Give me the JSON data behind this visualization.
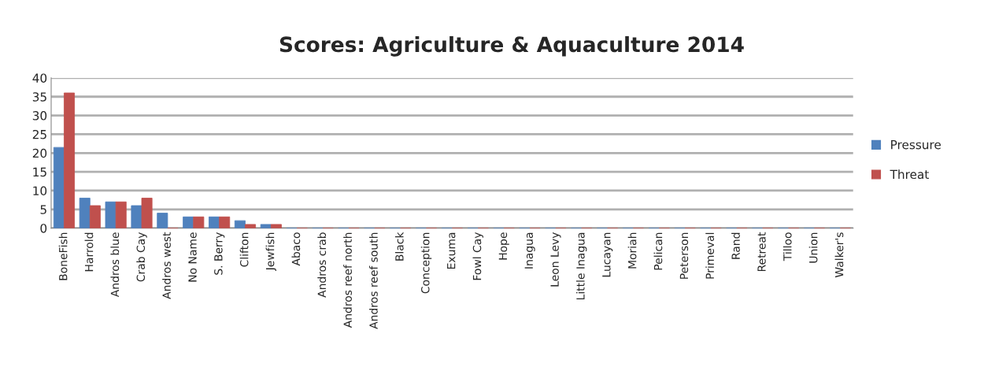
{
  "chart_data": {
    "type": "bar",
    "title": "Scores: Agriculture & Aquaculture 2014",
    "categories": [
      "BoneFish",
      "Harrold",
      "Andros blue",
      "Crab Cay",
      "Andros west",
      "No Name",
      "S. Berry",
      "Clifton",
      "Jewfish",
      "Abaco",
      "Andros crab",
      "Andros reef north",
      "Andros reef south",
      "Black",
      "Conception",
      "Exuma",
      "Fowl Cay",
      "Hope",
      "Inagua",
      "Leon Levy",
      "Little Inagua",
      "Lucayan",
      "Moriah",
      "Pelican",
      "Peterson",
      "Primeval",
      "Rand",
      "Retreat",
      "Tilloo",
      "Union",
      "Walker's"
    ],
    "series": [
      {
        "name": "Pressure",
        "color": "#4f81bd",
        "values": [
          21.5,
          8,
          7,
          6,
          4,
          3,
          3,
          2,
          1,
          0,
          0,
          0,
          0,
          0,
          0,
          0,
          0,
          0,
          0,
          0,
          0,
          0,
          0,
          0,
          0,
          0,
          0,
          0,
          0,
          0,
          0
        ]
      },
      {
        "name": "Threat",
        "color": "#c0504d",
        "values": [
          36,
          6,
          7,
          8,
          0,
          3,
          3,
          1,
          1,
          0,
          0,
          0,
          0,
          0,
          0,
          0,
          0,
          0,
          0,
          0,
          0,
          0,
          0,
          0,
          0,
          0,
          0,
          0,
          0,
          0,
          0
        ]
      }
    ],
    "ylim": [
      0,
      40
    ],
    "yticks": [
      0,
      5,
      10,
      15,
      20,
      25,
      30,
      35,
      40
    ],
    "grid": "y",
    "legend": "right"
  }
}
